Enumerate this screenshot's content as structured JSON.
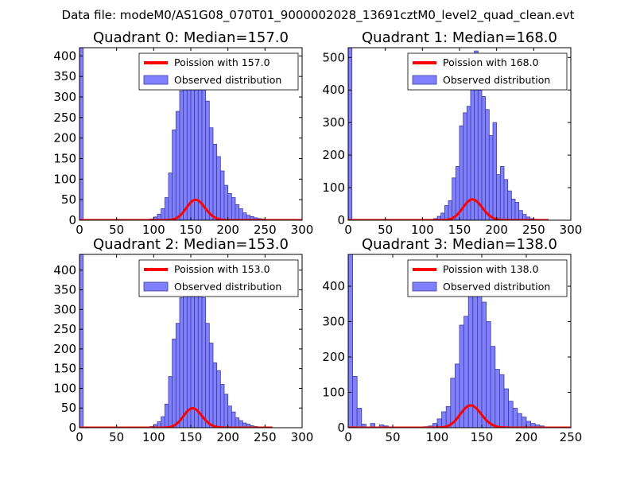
{
  "figure": {
    "suptitle": "Data file: modeM0/AS1G08_070T01_9000002028_13691cztM0_level2_quad_clean.evt"
  },
  "colors": {
    "bar_fill": "#8080ff",
    "bar_edge": "#3d3d9e",
    "poisson_line": "#ff0000",
    "axis": "#000000"
  },
  "chart_data": [
    {
      "type": "bar+line",
      "quadrant": 0,
      "title": "Quadrant 0: Median=157.0",
      "median": 157.0,
      "xlim": [
        0,
        300
      ],
      "ylim": [
        0,
        420
      ],
      "xticks": [
        0,
        50,
        100,
        150,
        200,
        250,
        300
      ],
      "yticks": [
        0,
        50,
        100,
        150,
        200,
        250,
        300,
        350,
        400
      ],
      "bin_width": 5,
      "legend": {
        "placement": "top-right",
        "line_label": "Poission with 157.0",
        "bar_label": "Observed distribution"
      },
      "bins": [
        [
          0,
          420
        ],
        [
          95,
          3
        ],
        [
          100,
          8
        ],
        [
          105,
          15
        ],
        [
          110,
          28
        ],
        [
          115,
          55
        ],
        [
          120,
          115
        ],
        [
          125,
          220
        ],
        [
          130,
          265
        ],
        [
          135,
          315
        ],
        [
          140,
          350
        ],
        [
          145,
          375
        ],
        [
          150,
          385
        ],
        [
          155,
          380
        ],
        [
          160,
          370
        ],
        [
          165,
          335
        ],
        [
          170,
          290
        ],
        [
          175,
          225
        ],
        [
          180,
          185
        ],
        [
          185,
          155
        ],
        [
          190,
          120
        ],
        [
          195,
          85
        ],
        [
          200,
          65
        ],
        [
          205,
          55
        ],
        [
          210,
          38
        ],
        [
          215,
          28
        ],
        [
          220,
          18
        ],
        [
          225,
          12
        ],
        [
          230,
          9
        ],
        [
          235,
          6
        ],
        [
          240,
          4
        ],
        [
          245,
          3
        ],
        [
          250,
          2
        ],
        [
          255,
          1
        ]
      ],
      "poisson_range": [
        0,
        300
      ],
      "poisson_scale": 1560
    },
    {
      "type": "bar+line",
      "quadrant": 1,
      "title": "Quadrant 1: Median=168.0",
      "median": 168.0,
      "xlim": [
        0,
        300
      ],
      "ylim": [
        0,
        530
      ],
      "xticks": [
        0,
        50,
        100,
        150,
        200,
        250,
        300
      ],
      "yticks": [
        0,
        100,
        200,
        300,
        400,
        500
      ],
      "bin_width": 5,
      "legend": {
        "placement": "top-right",
        "line_label": "Poission with 168.0",
        "bar_label": "Observed distribution"
      },
      "bins": [
        [
          0,
          530
        ],
        [
          110,
          2
        ],
        [
          115,
          5
        ],
        [
          120,
          12
        ],
        [
          125,
          22
        ],
        [
          130,
          45
        ],
        [
          135,
          60
        ],
        [
          140,
          130
        ],
        [
          145,
          165
        ],
        [
          150,
          290
        ],
        [
          155,
          330
        ],
        [
          160,
          350
        ],
        [
          165,
          460
        ],
        [
          170,
          520
        ],
        [
          175,
          400
        ],
        [
          180,
          380
        ],
        [
          185,
          340
        ],
        [
          190,
          260
        ],
        [
          195,
          300
        ],
        [
          200,
          140
        ],
        [
          205,
          165
        ],
        [
          210,
          125
        ],
        [
          215,
          90
        ],
        [
          220,
          65
        ],
        [
          225,
          55
        ],
        [
          230,
          30
        ],
        [
          235,
          18
        ],
        [
          240,
          10
        ],
        [
          245,
          5
        ],
        [
          250,
          3
        ],
        [
          255,
          2
        ],
        [
          260,
          1
        ]
      ],
      "poisson_range": [
        0,
        270
      ],
      "poisson_scale": 2080
    },
    {
      "type": "bar+line",
      "quadrant": 2,
      "title": "Quadrant 2: Median=153.0",
      "median": 153.0,
      "xlim": [
        0,
        300
      ],
      "ylim": [
        0,
        440
      ],
      "xticks": [
        0,
        50,
        100,
        150,
        200,
        250,
        300
      ],
      "yticks": [
        0,
        50,
        100,
        150,
        200,
        250,
        300,
        350,
        400
      ],
      "bin_width": 5,
      "legend": {
        "placement": "top-right",
        "line_label": "Poission with 153.0",
        "bar_label": "Observed distribution"
      },
      "bins": [
        [
          0,
          440
        ],
        [
          95,
          3
        ],
        [
          100,
          8
        ],
        [
          105,
          15
        ],
        [
          110,
          28
        ],
        [
          115,
          60
        ],
        [
          120,
          130
        ],
        [
          125,
          225
        ],
        [
          130,
          265
        ],
        [
          135,
          330
        ],
        [
          140,
          355
        ],
        [
          145,
          390
        ],
        [
          150,
          395
        ],
        [
          155,
          380
        ],
        [
          160,
          360
        ],
        [
          165,
          330
        ],
        [
          170,
          265
        ],
        [
          175,
          215
        ],
        [
          180,
          165
        ],
        [
          185,
          145
        ],
        [
          190,
          110
        ],
        [
          195,
          85
        ],
        [
          200,
          55
        ],
        [
          205,
          40
        ],
        [
          210,
          25
        ],
        [
          215,
          18
        ],
        [
          220,
          12
        ],
        [
          225,
          9
        ],
        [
          230,
          5
        ],
        [
          235,
          3
        ],
        [
          240,
          2
        ],
        [
          245,
          1
        ]
      ],
      "poisson_range": [
        0,
        260
      ],
      "poisson_scale": 1530
    },
    {
      "type": "bar+line",
      "quadrant": 3,
      "title": "Quadrant 3: Median=138.0",
      "median": 138.0,
      "xlim": [
        0,
        250
      ],
      "ylim": [
        0,
        490
      ],
      "xticks": [
        0,
        50,
        100,
        150,
        200,
        250
      ],
      "yticks": [
        0,
        100,
        200,
        300,
        400
      ],
      "bin_width": 5,
      "legend": {
        "placement": "top-right",
        "line_label": "Poission with 138.0",
        "bar_label": "Observed distribution"
      },
      "bins": [
        [
          0,
          490
        ],
        [
          5,
          145
        ],
        [
          10,
          55
        ],
        [
          15,
          10
        ],
        [
          25,
          12
        ],
        [
          35,
          8
        ],
        [
          40,
          5
        ],
        [
          85,
          3
        ],
        [
          90,
          5
        ],
        [
          95,
          12
        ],
        [
          100,
          25
        ],
        [
          105,
          45
        ],
        [
          110,
          60
        ],
        [
          115,
          140
        ],
        [
          120,
          180
        ],
        [
          125,
          290
        ],
        [
          130,
          315
        ],
        [
          135,
          400
        ],
        [
          140,
          440
        ],
        [
          145,
          390
        ],
        [
          150,
          355
        ],
        [
          155,
          300
        ],
        [
          160,
          230
        ],
        [
          165,
          165
        ],
        [
          170,
          150
        ],
        [
          175,
          110
        ],
        [
          180,
          75
        ],
        [
          185,
          55
        ],
        [
          190,
          40
        ],
        [
          195,
          30
        ],
        [
          200,
          18
        ],
        [
          205,
          12
        ],
        [
          210,
          8
        ],
        [
          215,
          5
        ],
        [
          220,
          2
        ]
      ],
      "poisson_range": [
        0,
        250
      ],
      "poisson_scale": 1860
    }
  ]
}
